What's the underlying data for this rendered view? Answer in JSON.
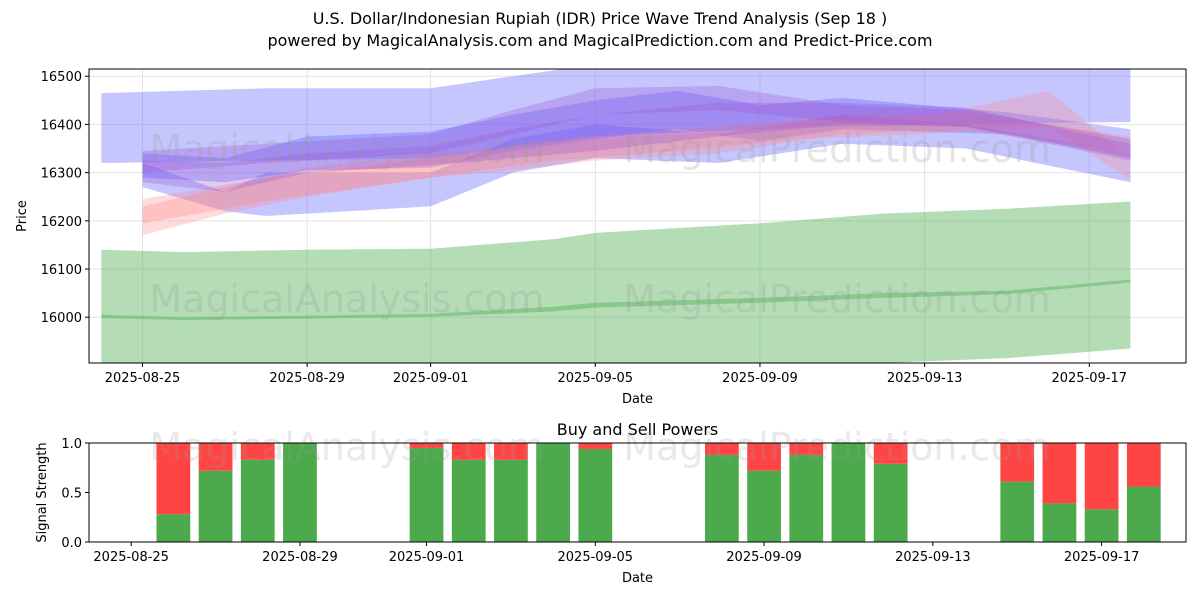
{
  "header": {
    "title": "U.S. Dollar/Indonesian Rupiah (IDR) Price Wave Trend Analysis (Sep 18 )",
    "subtitle": "powered by MagicalAnalysis.com and MagicalPrediction.com and Predict-Price.com"
  },
  "watermarks": [
    "MagicalAnalysis.com",
    "MagicalPrediction.com"
  ],
  "colors": {
    "band_blue": "#6a6aff",
    "band_red": "#ff8080",
    "band_purple": "#9b55d4",
    "band_green": "#4caf50",
    "buy": "#4caa4c",
    "sell": "#ff4444"
  },
  "chart_data": [
    {
      "type": "area",
      "xlabel": "Date",
      "ylabel": "Price",
      "ylim": [
        15905,
        16515
      ],
      "xlim": [
        "2025-08-24",
        "2025-09-19"
      ],
      "yticks": [
        16000,
        16100,
        16200,
        16300,
        16400,
        16500
      ],
      "xticks": [
        "2025-08-25",
        "2025-08-29",
        "2025-09-01",
        "2025-09-05",
        "2025-09-09",
        "2025-09-13",
        "2025-09-17"
      ],
      "grid": true,
      "series": [
        {
          "color": "blue",
          "x": [
            "2025-08-24",
            "2025-08-28",
            "2025-09-01",
            "2025-09-05",
            "2025-09-09",
            "2025-09-13",
            "2025-09-18"
          ],
          "upper": [
            16465,
            16475,
            16475,
            16525,
            16525,
            16525,
            16515
          ],
          "lower": [
            16320,
            16325,
            16330,
            16375,
            16390,
            16400,
            16405
          ]
        },
        {
          "color": "blue",
          "x": [
            "2025-08-25",
            "2025-08-27",
            "2025-08-29",
            "2025-09-01",
            "2025-09-03",
            "2025-09-05",
            "2025-09-07",
            "2025-09-09",
            "2025-09-11",
            "2025-09-13",
            "2025-09-15",
            "2025-09-18"
          ],
          "upper": [
            16340,
            16330,
            16375,
            16385,
            16420,
            16450,
            16470,
            16440,
            16455,
            16440,
            16425,
            16390
          ],
          "lower": [
            16290,
            16280,
            16305,
            16310,
            16345,
            16370,
            16390,
            16365,
            16390,
            16385,
            16380,
            16330
          ]
        },
        {
          "color": "blue",
          "x": [
            "2025-08-25",
            "2025-08-27",
            "2025-08-28",
            "2025-09-01",
            "2025-09-03",
            "2025-09-05",
            "2025-09-08",
            "2025-09-11",
            "2025-09-14",
            "2025-09-18"
          ],
          "upper": [
            16320,
            16260,
            16300,
            16300,
            16370,
            16400,
            16380,
            16420,
            16400,
            16340
          ],
          "lower": [
            16270,
            16220,
            16210,
            16230,
            16300,
            16330,
            16320,
            16360,
            16350,
            16280
          ]
        },
        {
          "color": "red",
          "x": [
            "2025-08-25",
            "2025-08-27",
            "2025-08-29",
            "2025-09-01",
            "2025-09-03",
            "2025-09-05",
            "2025-09-08",
            "2025-09-11",
            "2025-09-14",
            "2025-09-18"
          ],
          "upper": [
            16230,
            16270,
            16310,
            16340,
            16350,
            16370,
            16385,
            16420,
            16425,
            16375
          ],
          "lower": [
            16170,
            16215,
            16250,
            16290,
            16305,
            16325,
            16340,
            16380,
            16390,
            16335
          ]
        },
        {
          "color": "red",
          "x": [
            "2025-08-25",
            "2025-08-28",
            "2025-09-01",
            "2025-09-04",
            "2025-09-07",
            "2025-09-10",
            "2025-09-13",
            "2025-09-16",
            "2025-09-18"
          ],
          "upper": [
            16245,
            16290,
            16330,
            16370,
            16390,
            16410,
            16415,
            16470,
            16330
          ],
          "lower": [
            16195,
            16240,
            16290,
            16325,
            16345,
            16370,
            16380,
            16395,
            16285
          ]
        },
        {
          "color": "purple",
          "x": [
            "2025-08-25",
            "2025-08-27",
            "2025-08-29",
            "2025-09-01",
            "2025-09-03",
            "2025-09-05",
            "2025-09-08",
            "2025-09-11",
            "2025-09-14",
            "2025-09-18"
          ],
          "upper": [
            16325,
            16320,
            16340,
            16355,
            16390,
            16420,
            16445,
            16445,
            16435,
            16360
          ],
          "lower": [
            16280,
            16260,
            16300,
            16315,
            16330,
            16345,
            16375,
            16400,
            16395,
            16325
          ]
        },
        {
          "color": "purple",
          "x": [
            "2025-08-25",
            "2025-08-28",
            "2025-09-01",
            "2025-09-03",
            "2025-09-05",
            "2025-09-08",
            "2025-09-11",
            "2025-09-14",
            "2025-09-18"
          ],
          "upper": [
            16345,
            16360,
            16380,
            16430,
            16475,
            16480,
            16440,
            16430,
            16370
          ],
          "lower": [
            16300,
            16320,
            16340,
            16380,
            16420,
            16430,
            16405,
            16395,
            16340
          ]
        },
        {
          "color": "green",
          "x": [
            "2025-08-24",
            "2025-08-26",
            "2025-08-29",
            "2025-09-01",
            "2025-09-04",
            "2025-09-05",
            "2025-09-09",
            "2025-09-12",
            "2025-09-15",
            "2025-09-18"
          ],
          "upper": [
            16140,
            16135,
            16140,
            16142,
            16162,
            16175,
            16195,
            16215,
            16225,
            16240
          ],
          "lower": [
            15905,
            15885,
            15875,
            15870,
            15870,
            15872,
            15880,
            15905,
            15915,
            15935
          ]
        },
        {
          "color": "green",
          "x": [
            "2025-08-24",
            "2025-08-26",
            "2025-08-29",
            "2025-09-01",
            "2025-09-04",
            "2025-09-05",
            "2025-09-09",
            "2025-09-12",
            "2025-09-15",
            "2025-09-18"
          ],
          "upper": [
            16005,
            16000,
            16003,
            16007,
            16022,
            16030,
            16040,
            16050,
            16055,
            16078
          ],
          "lower": [
            15998,
            15994,
            15997,
            16001,
            16012,
            16020,
            16030,
            16040,
            16048,
            16072
          ]
        }
      ]
    },
    {
      "type": "bar",
      "title": "Buy and Sell Powers",
      "xlabel": "Date",
      "ylabel": "Signal Strength",
      "ylim": [
        0,
        1
      ],
      "yticks": [
        "0.0",
        "0.5",
        "1.0"
      ],
      "xticks": [
        "2025-08-25",
        "2025-08-29",
        "2025-09-01",
        "2025-09-05",
        "2025-09-09",
        "2025-09-13",
        "2025-09-17"
      ],
      "categories": [
        "2025-08-26",
        "2025-08-27",
        "2025-08-28",
        "2025-08-29",
        "2025-09-01",
        "2025-09-02",
        "2025-09-03",
        "2025-09-04",
        "2025-09-05",
        "2025-09-08",
        "2025-09-09",
        "2025-09-10",
        "2025-09-11",
        "2025-09-12",
        "2025-09-15",
        "2025-09-16",
        "2025-09-17",
        "2025-09-18"
      ],
      "series": [
        {
          "name": "Buy",
          "values": [
            0.28,
            0.72,
            0.83,
            1.0,
            0.95,
            0.83,
            0.83,
            1.0,
            0.94,
            0.88,
            0.72,
            0.88,
            1.0,
            0.79,
            0.61,
            0.39,
            0.33,
            0.56
          ]
        },
        {
          "name": "Sell",
          "values": [
            0.72,
            0.28,
            0.17,
            0.0,
            0.05,
            0.17,
            0.17,
            0.0,
            0.06,
            0.12,
            0.28,
            0.12,
            0.0,
            0.21,
            0.39,
            0.61,
            0.67,
            0.44
          ]
        }
      ]
    }
  ]
}
